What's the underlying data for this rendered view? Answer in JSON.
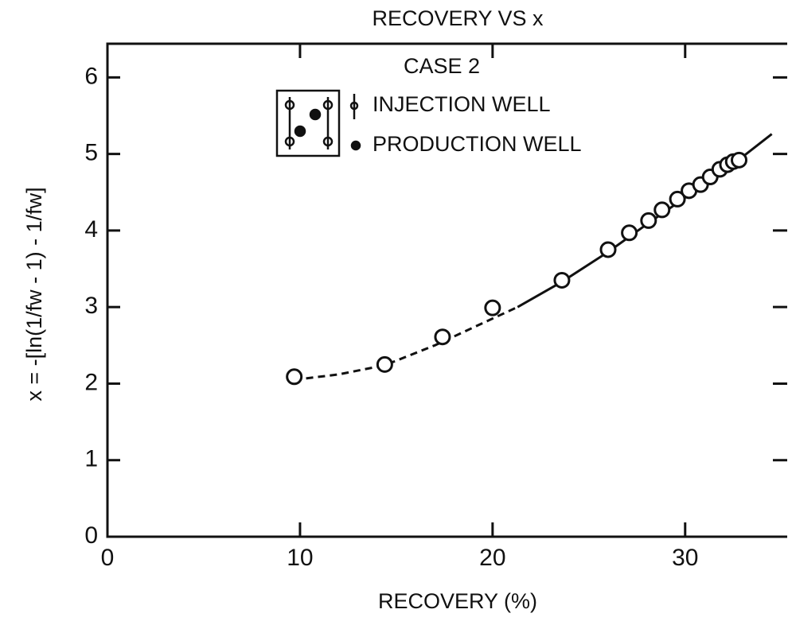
{
  "chart_data": {
    "type": "scatter",
    "title": "RECOVERY VS x",
    "x_label": "RECOVERY (%)",
    "y_label": "x = -[ln(1/fw - 1) - 1/fw]",
    "annotations": [
      "CASE 2",
      "INJECTION WELL",
      "PRODUCTION WELL"
    ],
    "xlim": [
      0,
      35.3
    ],
    "ylim": [
      0,
      6.44
    ],
    "xticks": [
      0,
      10,
      20,
      30
    ],
    "yticks": [
      0,
      1,
      2,
      3,
      4,
      5,
      6
    ],
    "series": [
      {
        "mode": "dashed",
        "color": "#111",
        "x": [
          9.7,
          12,
          14.4,
          17,
          20,
          21.3
        ],
        "values": [
          2.05,
          2.12,
          2.24,
          2.5,
          2.85,
          3.0
        ]
      },
      {
        "mode": "solid",
        "color": "#111",
        "x": [
          21.3,
          23.6,
          26,
          28,
          30,
          32,
          34.5
        ],
        "values": [
          3.0,
          3.33,
          3.72,
          4.08,
          4.43,
          4.77,
          5.26
        ]
      },
      {
        "mode": "markers",
        "color": "#111",
        "x": [
          9.7,
          14.4,
          17.4,
          20.0,
          23.6,
          26.0,
          27.1,
          28.1,
          28.8,
          29.6,
          30.2,
          30.8,
          31.3,
          31.8,
          32.2,
          32.5,
          32.8
        ],
        "values": [
          2.09,
          2.25,
          2.61,
          2.99,
          3.35,
          3.75,
          3.97,
          4.13,
          4.27,
          4.41,
          4.52,
          4.6,
          4.7,
          4.8,
          4.86,
          4.9,
          4.92
        ]
      }
    ]
  }
}
